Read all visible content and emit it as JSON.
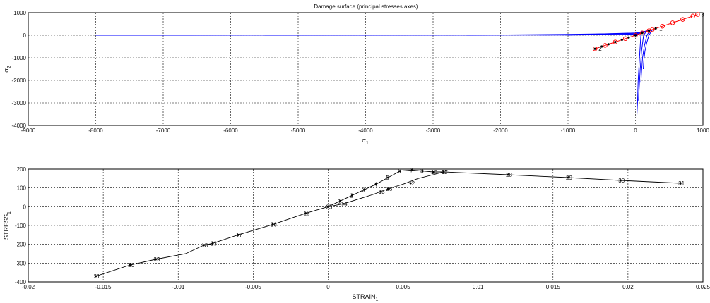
{
  "chart_data": [
    {
      "type": "line",
      "title": "Damage surface (principal stresses axes)",
      "xlabel": "σ",
      "xlabel_sub": "1",
      "ylabel": "σ",
      "ylabel_sub": "2",
      "xlim": [
        -9000,
        1000
      ],
      "ylim": [
        -4000,
        1000
      ],
      "xticks": [
        "-9000",
        "-8000",
        "-7000",
        "-6000",
        "-5000",
        "-4000",
        "-3000",
        "-2000",
        "-1000",
        "0",
        "1000"
      ],
      "yticks": [
        "-4000",
        "-3000",
        "-2000",
        "-1000",
        "0",
        "1000"
      ],
      "grid": true,
      "surface_color": "#0000ff",
      "path_color": "#ff0000",
      "surfaces": [
        {
          "x": [
            -8000,
            -1000,
            0,
            60,
            90,
            100
          ],
          "y": [
            0,
            5,
            30,
            60,
            100,
            200
          ]
        },
        {
          "x": [
            -5500,
            -1000,
            0,
            60,
            110,
            150
          ],
          "y": [
            0,
            20,
            50,
            80,
            120,
            160
          ]
        },
        {
          "x": [
            -2500,
            -1000,
            0,
            80,
            150,
            200
          ],
          "y": [
            0,
            40,
            80,
            120,
            180,
            220
          ]
        },
        {
          "x": [
            -1000,
            -500,
            0,
            100,
            200,
            250
          ],
          "y": [
            0,
            60,
            100,
            150,
            210,
            240
          ]
        },
        {
          "x": [
            100,
            80,
            60,
            40,
            30,
            20
          ],
          "y": [
            200,
            0,
            -1000,
            -2000,
            -3000,
            -3600
          ]
        },
        {
          "x": [
            160,
            120,
            90,
            70,
            55,
            45
          ],
          "y": [
            160,
            0,
            -700,
            -1500,
            -2300,
            -2900
          ]
        },
        {
          "x": [
            220,
            170,
            130,
            105,
            90,
            80
          ],
          "y": [
            220,
            0,
            -500,
            -1000,
            -1600,
            -2100
          ]
        },
        {
          "x": [
            250,
            200,
            165,
            140,
            125,
            115
          ],
          "y": [
            240,
            0,
            -350,
            -700,
            -1100,
            -1500
          ]
        }
      ],
      "path": {
        "x": [
          -600,
          -450,
          -300,
          -150,
          0,
          100,
          200,
          250,
          400,
          550,
          700,
          850,
          920
        ],
        "y": [
          -600,
          -450,
          -300,
          -150,
          0,
          100,
          200,
          250,
          400,
          550,
          700,
          850,
          920
        ]
      },
      "black_points": {
        "x": [
          -600,
          -500,
          -400,
          -300,
          -200,
          -100,
          0,
          100,
          200,
          300
        ],
        "y": [
          -600,
          -500,
          -400,
          -300,
          -200,
          -100,
          0,
          100,
          200,
          300
        ]
      },
      "labels": [
        {
          "text": "1",
          "x": 300,
          "y": 300
        },
        {
          "text": "2",
          "x": -600,
          "y": -600
        },
        {
          "text": "3",
          "x": 920,
          "y": 920
        }
      ]
    },
    {
      "type": "line",
      "title": "",
      "xlabel": "STRAIN",
      "xlabel_sub": "1",
      "ylabel": "STRESS",
      "ylabel_sub": "1",
      "xlim": [
        -0.02,
        0.025
      ],
      "ylim": [
        -400,
        200
      ],
      "xticks": [
        "-0.02",
        "-0.015",
        "-0.01",
        "-0.005",
        "0",
        "0.005",
        "0.01",
        "0.015",
        "0.02",
        "0.025"
      ],
      "yticks": [
        "-400",
        "-300",
        "-200",
        "-100",
        "0",
        "100",
        "200"
      ],
      "grid": true,
      "line_color": "#000000",
      "branches": [
        {
          "x": [
            0.0,
            0.0008,
            0.0016,
            0.0024,
            0.0032,
            0.004,
            0.0048,
            0.0056,
            0.0063,
            0.007,
            0.0077
          ],
          "y": [
            0,
            30,
            60,
            90,
            120,
            155,
            190,
            195,
            190,
            185,
            185
          ]
        },
        {
          "x": [
            0.0,
            0.001,
            0.002,
            0.003,
            0.004,
            0.005,
            0.006,
            0.007,
            0.0077
          ],
          "y": [
            0,
            15,
            40,
            65,
            95,
            120,
            150,
            170,
            185
          ]
        },
        {
          "x": [
            0.0077,
            0.012,
            0.016,
            0.0195,
            0.0235
          ],
          "y": [
            185,
            170,
            155,
            140,
            125
          ]
        },
        {
          "x": [
            0.0,
            -0.0015,
            -0.0037,
            -0.006,
            -0.0077,
            -0.0083,
            -0.0095,
            -0.0115,
            -0.0132,
            -0.0155
          ],
          "y": [
            0,
            -35,
            -95,
            -150,
            -195,
            -205,
            -250,
            -280,
            -310,
            -370
          ]
        }
      ],
      "points": [
        {
          "label": "1",
          "x": 0.0008,
          "y": 30
        },
        {
          "label": "2",
          "x": 0.0016,
          "y": 60
        },
        {
          "label": "3",
          "x": 0.0024,
          "y": 90
        },
        {
          "label": "4",
          "x": 0.0032,
          "y": 120
        },
        {
          "label": "5",
          "x": 0.004,
          "y": 155
        },
        {
          "label": "6",
          "x": 0.0048,
          "y": 190
        },
        {
          "label": "7",
          "x": 0.0056,
          "y": 195
        },
        {
          "label": "8",
          "x": 0.0063,
          "y": 190
        },
        {
          "label": "10",
          "x": 0.007,
          "y": 185
        },
        {
          "label": "11",
          "x": 0.0077,
          "y": 185
        },
        {
          "label": "12",
          "x": 0.0055,
          "y": 125
        },
        {
          "label": "13",
          "x": 0.0035,
          "y": 80
        },
        {
          "label": "14",
          "x": 0.001,
          "y": 15
        },
        {
          "label": "15",
          "x": -0.0015,
          "y": -35
        },
        {
          "label": "16",
          "x": -0.0037,
          "y": -95
        },
        {
          "label": "17",
          "x": -0.006,
          "y": -150
        },
        {
          "label": "18",
          "x": -0.0083,
          "y": -205
        },
        {
          "label": "19",
          "x": -0.0115,
          "y": -280
        },
        {
          "label": "20",
          "x": -0.0132,
          "y": -310
        },
        {
          "label": "21",
          "x": -0.0155,
          "y": -370
        },
        {
          "label": "22",
          "x": -0.0115,
          "y": -280
        },
        {
          "label": "23",
          "x": -0.0077,
          "y": -195
        },
        {
          "label": "24",
          "x": -0.0037,
          "y": -95
        },
        {
          "label": "25",
          "x": 0.0,
          "y": 0
        },
        {
          "label": "26",
          "x": 0.004,
          "y": 95
        },
        {
          "label": "27",
          "x": 0.0077,
          "y": 185
        },
        {
          "label": "28",
          "x": 0.012,
          "y": 170
        },
        {
          "label": "29",
          "x": 0.016,
          "y": 155
        },
        {
          "label": "30",
          "x": 0.0195,
          "y": 140
        },
        {
          "label": "31",
          "x": 0.0235,
          "y": 125
        }
      ]
    }
  ]
}
